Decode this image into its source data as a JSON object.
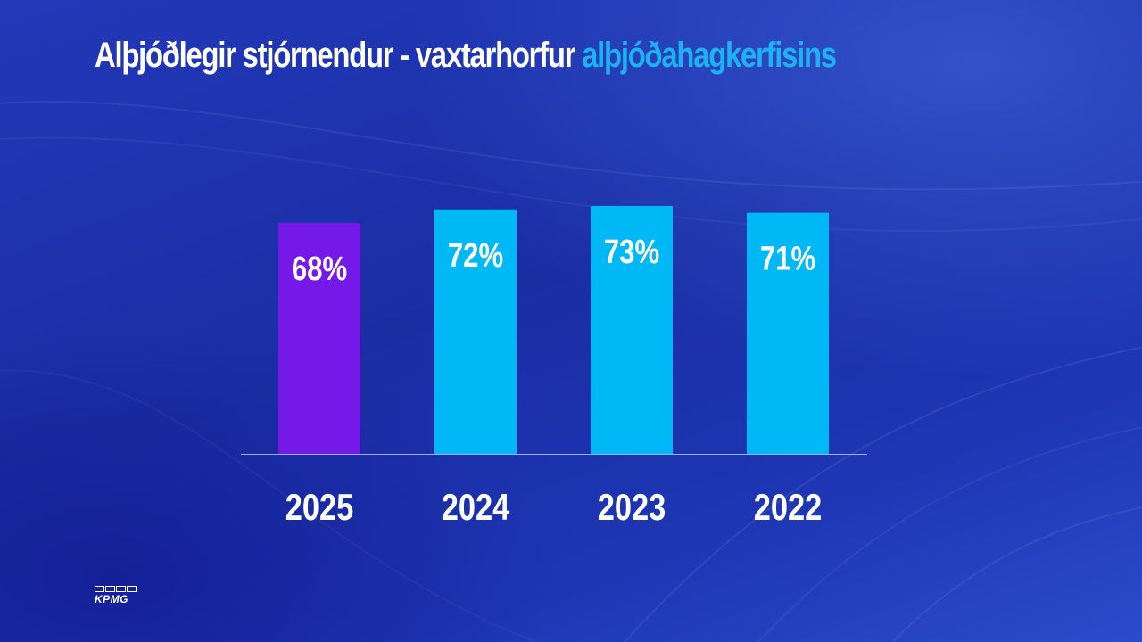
{
  "slide": {
    "title_main": "Alþjóðlegir stjórnendur - vaxtarhorfur ",
    "title_accent": "alþjóðahagkerfisins",
    "logo_text": "KPMG"
  },
  "colors": {
    "accent": "#1eb2f0",
    "highlight_bar": "#7419e8",
    "bar": "#00b8f5",
    "axis": "#9fb0e8",
    "text": "#ffffff"
  },
  "chart_data": {
    "type": "bar",
    "categories": [
      "2025",
      "2024",
      "2023",
      "2022"
    ],
    "values": [
      68,
      72,
      73,
      71
    ],
    "labels": [
      "68%",
      "72%",
      "73%",
      "71%"
    ],
    "highlight_index": 0,
    "ylim": [
      0,
      73
    ],
    "grid": false,
    "legend": "none"
  }
}
